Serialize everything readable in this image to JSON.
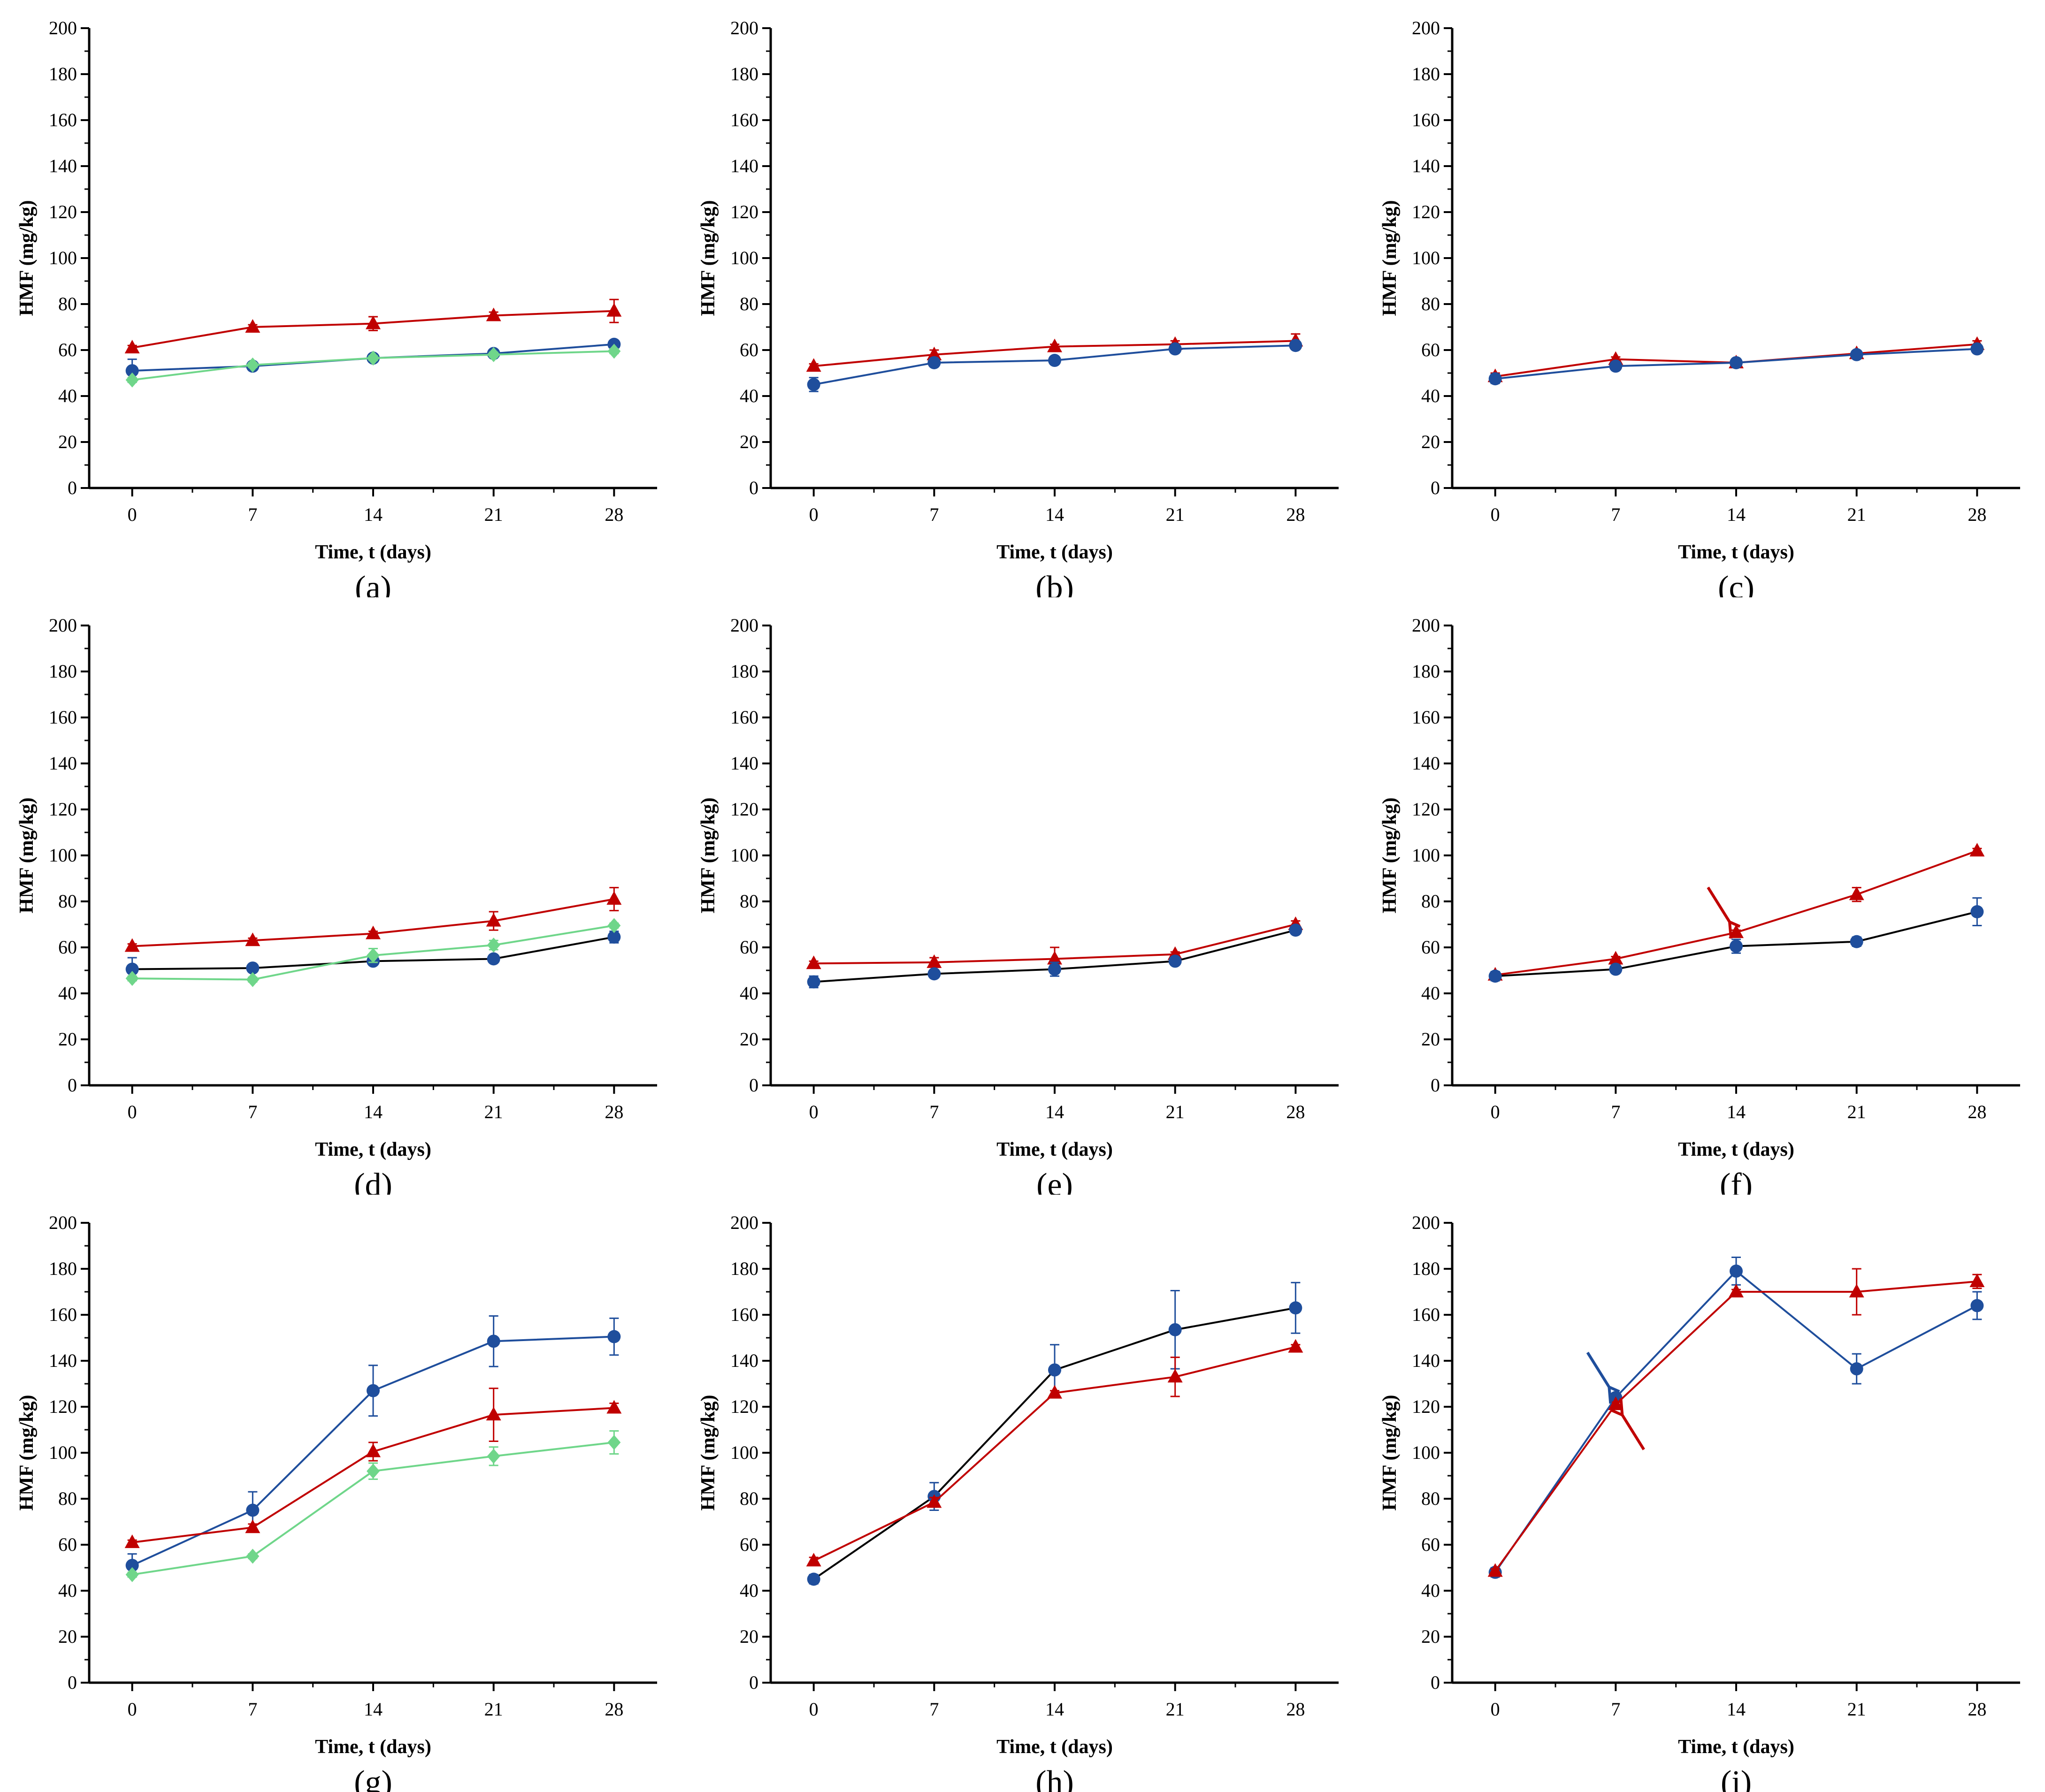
{
  "colors": {
    "red": "#c00000",
    "blue": "#1f4e9c",
    "green": "#6fd68a",
    "black": "#000000"
  },
  "chart_data": [
    {
      "type": "line",
      "panel_label": "(a)",
      "xlabel": "Time, t (days)",
      "ylabel": "HMF (mg/kg)",
      "x": [
        0,
        7,
        14,
        21,
        28
      ],
      "xticks": [
        "0",
        "7",
        "14",
        "21",
        "28"
      ],
      "ylim": [
        0,
        200
      ],
      "yticks": [
        "0",
        "20",
        "40",
        "60",
        "80",
        "100",
        "120",
        "140",
        "160",
        "180",
        "200"
      ],
      "series": [
        {
          "name": "red-triangle",
          "line": "red",
          "marker": "red",
          "shape": "triangle",
          "values": [
            61,
            70,
            71.5,
            75,
            77
          ],
          "err": [
            1,
            1,
            3,
            1.5,
            5
          ]
        },
        {
          "name": "blue-circle",
          "line": "blue",
          "marker": "blue",
          "shape": "circle",
          "values": [
            51,
            53,
            56.5,
            58.5,
            62.5
          ],
          "err": [
            5,
            1,
            1,
            1.5,
            1
          ]
        },
        {
          "name": "green-diamond",
          "line": "green",
          "marker": "green",
          "shape": "diamond",
          "values": [
            47,
            53.5,
            56.5,
            58,
            59.5
          ],
          "err": [
            1,
            1,
            1,
            1,
            1
          ]
        }
      ]
    },
    {
      "type": "line",
      "panel_label": "(b)",
      "xlabel": "Time, t (days)",
      "ylabel": "HMF (mg/kg)",
      "x": [
        0,
        7,
        14,
        21,
        28
      ],
      "xticks": [
        "0",
        "7",
        "14",
        "21",
        "28"
      ],
      "ylim": [
        0,
        200
      ],
      "yticks": [
        "0",
        "20",
        "40",
        "60",
        "80",
        "100",
        "120",
        "140",
        "160",
        "180",
        "200"
      ],
      "series": [
        {
          "name": "red-triangle",
          "line": "red",
          "marker": "red",
          "shape": "triangle",
          "values": [
            53,
            58,
            61.5,
            62.5,
            64
          ],
          "err": [
            1,
            2,
            1,
            1.5,
            3
          ]
        },
        {
          "name": "blue-circle",
          "line": "blue",
          "marker": "blue",
          "shape": "circle",
          "values": [
            45,
            54.5,
            55.5,
            60.5,
            62
          ],
          "err": [
            3,
            1,
            1,
            1.5,
            1
          ]
        }
      ]
    },
    {
      "type": "line",
      "panel_label": "(c)",
      "xlabel": "Time, t (days)",
      "ylabel": "HMF (mg/kg)",
      "x": [
        0,
        7,
        14,
        21,
        28
      ],
      "xticks": [
        "0",
        "7",
        "14",
        "21",
        "28"
      ],
      "ylim": [
        0,
        200
      ],
      "yticks": [
        "0",
        "20",
        "40",
        "60",
        "80",
        "100",
        "120",
        "140",
        "160",
        "180",
        "200"
      ],
      "series": [
        {
          "name": "red-triangle",
          "line": "red",
          "marker": "red",
          "shape": "triangle",
          "values": [
            48.5,
            56,
            54.5,
            58.5,
            62.5
          ],
          "err": [
            1.5,
            1,
            1,
            1,
            1.5
          ]
        },
        {
          "name": "blue-circle",
          "line": "blue",
          "marker": "blue",
          "shape": "circle",
          "values": [
            47.5,
            53,
            54.5,
            58,
            60.5
          ],
          "err": [
            2,
            1,
            1,
            1,
            1
          ]
        }
      ]
    },
    {
      "type": "line",
      "panel_label": "(d)",
      "xlabel": "Time, t (days)",
      "ylabel": "HMF (mg/kg)",
      "x": [
        0,
        7,
        14,
        21,
        28
      ],
      "xticks": [
        "0",
        "7",
        "14",
        "21",
        "28"
      ],
      "ylim": [
        0,
        200
      ],
      "yticks": [
        "0",
        "20",
        "40",
        "60",
        "80",
        "100",
        "120",
        "140",
        "160",
        "180",
        "200"
      ],
      "series": [
        {
          "name": "red-triangle",
          "line": "red",
          "marker": "red",
          "shape": "triangle",
          "values": [
            60.5,
            63,
            66,
            71.5,
            81
          ],
          "err": [
            1,
            1,
            1,
            4,
            5
          ]
        },
        {
          "name": "blue-circle",
          "line": "black",
          "marker": "blue",
          "shape": "circle",
          "values": [
            50.5,
            51,
            54,
            55,
            64.5
          ],
          "err": [
            5,
            1,
            1,
            1,
            2.5
          ]
        },
        {
          "name": "green-diamond",
          "line": "green",
          "marker": "green",
          "shape": "diamond",
          "values": [
            46.5,
            46,
            56.5,
            61,
            69.5
          ],
          "err": [
            1,
            1,
            3,
            2,
            1
          ]
        }
      ]
    },
    {
      "type": "line",
      "panel_label": "(e)",
      "xlabel": "Time, t (days)",
      "ylabel": "HMF (mg/kg)",
      "x": [
        0,
        7,
        14,
        21,
        28
      ],
      "xticks": [
        "0",
        "7",
        "14",
        "21",
        "28"
      ],
      "ylim": [
        0,
        200
      ],
      "yticks": [
        "0",
        "20",
        "40",
        "60",
        "80",
        "100",
        "120",
        "140",
        "160",
        "180",
        "200"
      ],
      "series": [
        {
          "name": "red-triangle",
          "line": "red",
          "marker": "red",
          "shape": "triangle",
          "values": [
            53,
            53.5,
            55,
            57,
            70
          ],
          "err": [
            1,
            2,
            5,
            1,
            1.5
          ]
        },
        {
          "name": "blue-circle",
          "line": "black",
          "marker": "blue",
          "shape": "circle",
          "values": [
            45,
            48.5,
            50.5,
            54,
            67.5
          ],
          "err": [
            2.5,
            1,
            3,
            1,
            1
          ]
        }
      ]
    },
    {
      "type": "line",
      "panel_label": "(f)",
      "xlabel": "Time, t (days)",
      "ylabel": "HMF (mg/kg)",
      "x": [
        0,
        7,
        14,
        21,
        28
      ],
      "xticks": [
        "0",
        "7",
        "14",
        "21",
        "28"
      ],
      "ylim": [
        0,
        200
      ],
      "yticks": [
        "0",
        "20",
        "40",
        "60",
        "80",
        "100",
        "120",
        "140",
        "160",
        "180",
        "200"
      ],
      "series": [
        {
          "name": "red-triangle",
          "line": "red",
          "marker": "red",
          "shape": "triangle",
          "values": [
            48,
            55,
            66.5,
            83,
            102
          ],
          "err": [
            1,
            1,
            1,
            3,
            1
          ]
        },
        {
          "name": "blue-circle",
          "line": "black",
          "marker": "blue",
          "shape": "circle",
          "values": [
            47.5,
            50.5,
            60.5,
            62.5,
            75.5
          ],
          "err": [
            2,
            1,
            3,
            2,
            6
          ]
        }
      ],
      "arrows": [
        {
          "color": "red",
          "at_x": 14,
          "at_y": 66.5,
          "from": "upper-left"
        }
      ]
    },
    {
      "type": "line",
      "panel_label": "(g)",
      "xlabel": "Time, t (days)",
      "ylabel": "HMF (mg/kg)",
      "x": [
        0,
        7,
        14,
        21,
        28
      ],
      "xticks": [
        "0",
        "7",
        "14",
        "21",
        "28"
      ],
      "ylim": [
        0,
        200
      ],
      "yticks": [
        "0",
        "20",
        "40",
        "60",
        "80",
        "100",
        "120",
        "140",
        "160",
        "180",
        "200"
      ],
      "series": [
        {
          "name": "blue-circle",
          "line": "blue",
          "marker": "blue",
          "shape": "circle",
          "values": [
            51,
            75,
            127,
            148.5,
            150.5
          ],
          "err": [
            5,
            8,
            11,
            11,
            8
          ]
        },
        {
          "name": "red-triangle",
          "line": "red",
          "marker": "red",
          "shape": "triangle",
          "values": [
            61,
            67.5,
            100.5,
            116.5,
            119.5
          ],
          "err": [
            1,
            1.5,
            4,
            11.5,
            2
          ]
        },
        {
          "name": "green-diamond",
          "line": "green",
          "marker": "green",
          "shape": "diamond",
          "values": [
            47,
            55,
            92,
            98.5,
            104.5
          ],
          "err": [
            1,
            1,
            3.5,
            4,
            5
          ]
        }
      ]
    },
    {
      "type": "line",
      "panel_label": "(h)",
      "xlabel": "Time, t (days)",
      "ylabel": "HMF (mg/kg)",
      "x": [
        0,
        7,
        14,
        21,
        28
      ],
      "xticks": [
        "0",
        "7",
        "14",
        "21",
        "28"
      ],
      "ylim": [
        0,
        200
      ],
      "yticks": [
        "0",
        "20",
        "40",
        "60",
        "80",
        "100",
        "120",
        "140",
        "160",
        "180",
        "200"
      ],
      "series": [
        {
          "name": "blue-circle",
          "line": "black",
          "marker": "blue",
          "shape": "circle",
          "values": [
            45,
            81,
            136,
            153.5,
            163
          ],
          "err": [
            2,
            6,
            11,
            17,
            11
          ]
        },
        {
          "name": "red-triangle",
          "line": "red",
          "marker": "red",
          "shape": "triangle",
          "values": [
            53,
            78.5,
            126,
            133,
            146
          ],
          "err": [
            1.5,
            2,
            1,
            8.5,
            1
          ]
        }
      ]
    },
    {
      "type": "line",
      "panel_label": "(i)",
      "xlabel": "Time, t (days)",
      "ylabel": "HMF (mg/kg)",
      "x": [
        0,
        7,
        14,
        21,
        28
      ],
      "xticks": [
        "0",
        "7",
        "14",
        "21",
        "28"
      ],
      "ylim": [
        0,
        200
      ],
      "yticks": [
        "0",
        "20",
        "40",
        "60",
        "80",
        "100",
        "120",
        "140",
        "160",
        "180",
        "200"
      ],
      "series": [
        {
          "name": "blue-circle",
          "line": "blue",
          "marker": "blue",
          "shape": "circle",
          "values": [
            48,
            124,
            179,
            136.5,
            164
          ],
          "err": [
            2,
            1,
            6,
            6.5,
            6
          ]
        },
        {
          "name": "red-triangle",
          "line": "red",
          "marker": "red",
          "shape": "triangle",
          "values": [
            48.5,
            121,
            170,
            170,
            174.5
          ],
          "err": [
            1,
            1,
            1,
            10,
            3
          ]
        }
      ],
      "arrows": [
        {
          "color": "blue",
          "at_x": 7,
          "at_y": 124,
          "from": "upper-left"
        },
        {
          "color": "red",
          "at_x": 7,
          "at_y": 121,
          "from": "lower-right"
        }
      ]
    }
  ]
}
